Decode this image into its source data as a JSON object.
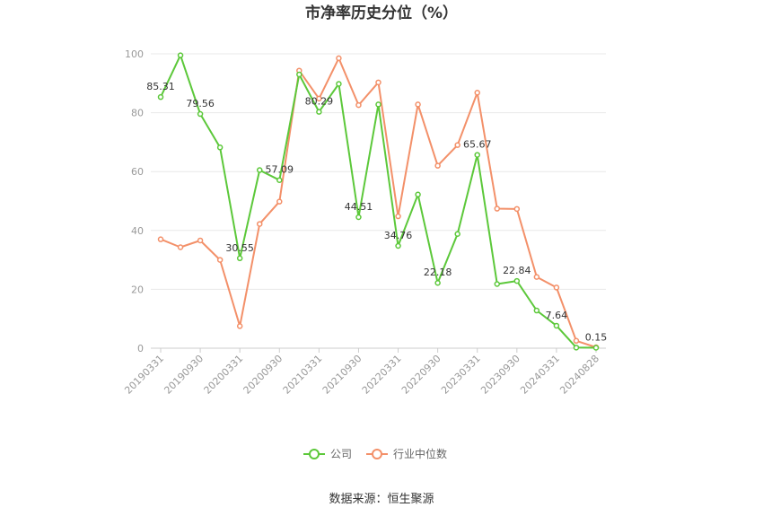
{
  "chart_data": {
    "type": "line",
    "title": "市净率历史分位（%）",
    "x": [
      "20190331",
      "20190630",
      "20190930",
      "20191231",
      "20200331",
      "20200630",
      "20200930",
      "20201231",
      "20210331",
      "20210630",
      "20210930",
      "20211231",
      "20220331",
      "20220630",
      "20220930",
      "20221231",
      "20230331",
      "20230630",
      "20230930",
      "20231231",
      "20240331",
      "20240630",
      "20240828"
    ],
    "x_tick_labels": [
      "20190331",
      "20190930",
      "20200331",
      "20200930",
      "20210331",
      "20210930",
      "20220331",
      "20220930",
      "20230331",
      "20230930",
      "20240331",
      "20240828"
    ],
    "y_ticks": [
      0,
      20,
      40,
      60,
      80,
      100
    ],
    "ylim": [
      0,
      100
    ],
    "grid": true,
    "legend_position": "bottom",
    "series": [
      {
        "name": "公司",
        "color": "#5cc83a",
        "values": [
          85.31,
          99.5,
          79.56,
          68.2,
          30.55,
          60.5,
          57.09,
          93.0,
          80.29,
          89.8,
          44.51,
          82.8,
          34.76,
          52.2,
          22.18,
          38.8,
          65.67,
          21.8,
          22.84,
          12.8,
          7.64,
          0.2,
          0.15
        ]
      },
      {
        "name": "行业中位数",
        "color": "#f39069",
        "values": [
          37.0,
          34.3,
          36.6,
          30.0,
          7.5,
          42.2,
          49.8,
          94.3,
          84.8,
          98.5,
          82.6,
          90.3,
          44.8,
          82.8,
          62.0,
          69.0,
          86.8,
          47.4,
          47.3,
          24.2,
          20.6,
          2.5,
          0.3
        ]
      }
    ],
    "data_labels": [
      {
        "index": 0,
        "text": "85.31"
      },
      {
        "index": 2,
        "text": "79.56"
      },
      {
        "index": 4,
        "text": "30.55"
      },
      {
        "index": 6,
        "text": "57.09"
      },
      {
        "index": 8,
        "text": "80.29"
      },
      {
        "index": 10,
        "text": "44.51"
      },
      {
        "index": 12,
        "text": "34.76"
      },
      {
        "index": 14,
        "text": "22.18"
      },
      {
        "index": 16,
        "text": "65.67"
      },
      {
        "index": 18,
        "text": "22.84"
      },
      {
        "index": 20,
        "text": "7.64"
      },
      {
        "index": 22,
        "text": "0.15"
      }
    ]
  },
  "source_text": "数据来源：恒生聚源"
}
